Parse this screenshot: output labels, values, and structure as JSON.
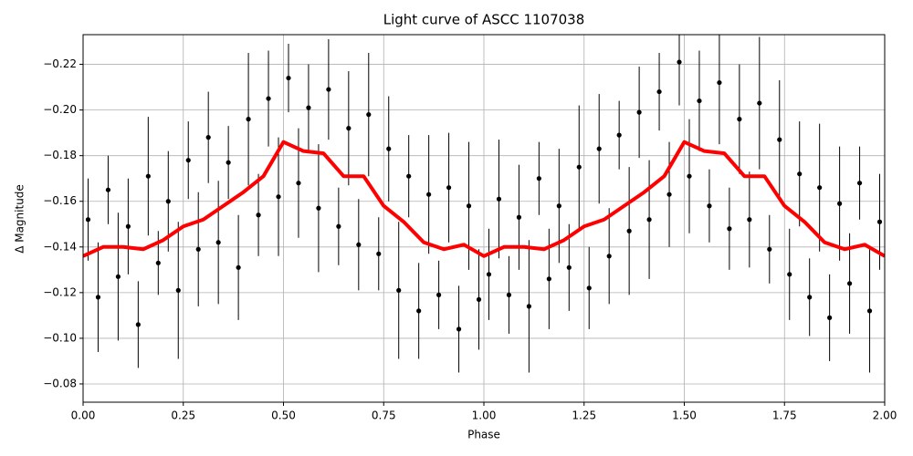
{
  "chart_data": {
    "type": "scatter",
    "title": "Light curve of ASCC 1107038",
    "xlabel": "Phase",
    "ylabel": "Δ Magnitude",
    "xlim": [
      0,
      2
    ],
    "ylim": [
      -0.072,
      -0.233
    ],
    "xticks": [
      {
        "value": 0,
        "label": "0.00"
      },
      {
        "value": 0.25,
        "label": "0.25"
      },
      {
        "value": 0.5,
        "label": "0.50"
      },
      {
        "value": 0.75,
        "label": "0.75"
      },
      {
        "value": 1,
        "label": "1.00"
      },
      {
        "value": 1.25,
        "label": "1.25"
      },
      {
        "value": 1.5,
        "label": "1.50"
      },
      {
        "value": 1.75,
        "label": "1.75"
      },
      {
        "value": 2,
        "label": "2.00"
      }
    ],
    "yticks": [
      {
        "value": -0.22,
        "label": "−0.22"
      },
      {
        "value": -0.2,
        "label": "−0.20"
      },
      {
        "value": -0.18,
        "label": "−0.18"
      },
      {
        "value": -0.16,
        "label": "−0.16"
      },
      {
        "value": -0.14,
        "label": "−0.14"
      },
      {
        "value": -0.12,
        "label": "−0.12"
      },
      {
        "value": -0.1,
        "label": "−0.10"
      },
      {
        "value": -0.08,
        "label": "−0.08"
      }
    ],
    "grid": true,
    "points": {
      "color": "#000000",
      "x": [
        0.0125,
        0.0375,
        0.0625,
        0.0875,
        0.1125,
        0.1375,
        0.1625,
        0.1875,
        0.2125,
        0.2375,
        0.2625,
        0.2875,
        0.3125,
        0.3375,
        0.3625,
        0.3875,
        0.4125,
        0.4375,
        0.4625,
        0.4875,
        0.5125,
        0.5375,
        0.5625,
        0.5875,
        0.6125,
        0.6375,
        0.6625,
        0.6875,
        0.7125,
        0.7375,
        0.7625,
        0.7875,
        0.8125,
        0.8375,
        0.8625,
        0.8875,
        0.9125,
        0.9375,
        0.9625,
        0.9875,
        1.0125,
        1.0375,
        1.0625,
        1.0875,
        1.1125,
        1.1375,
        1.1625,
        1.1875,
        1.2125,
        1.2375,
        1.2625,
        1.2875,
        1.3125,
        1.3375,
        1.3625,
        1.3875,
        1.4125,
        1.4375,
        1.4625,
        1.4875,
        1.5125,
        1.5375,
        1.5625,
        1.5875,
        1.6125,
        1.6375,
        1.6625,
        1.6875,
        1.7125,
        1.7375,
        1.7625,
        1.7875,
        1.8125,
        1.8375,
        1.8625,
        1.8875,
        1.9125,
        1.9375,
        1.9625,
        1.9875
      ],
      "y": [
        -0.152,
        -0.118,
        -0.165,
        -0.127,
        -0.149,
        -0.106,
        -0.171,
        -0.133,
        -0.16,
        -0.121,
        -0.178,
        -0.139,
        -0.188,
        -0.142,
        -0.177,
        -0.131,
        -0.196,
        -0.154,
        -0.205,
        -0.162,
        -0.214,
        -0.168,
        -0.201,
        -0.157,
        -0.209,
        -0.149,
        -0.192,
        -0.141,
        -0.198,
        -0.137,
        -0.183,
        -0.121,
        -0.171,
        -0.112,
        -0.163,
        -0.119,
        -0.166,
        -0.104,
        -0.158,
        -0.117,
        -0.128,
        -0.161,
        -0.119,
        -0.153,
        -0.114,
        -0.17,
        -0.126,
        -0.158,
        -0.131,
        -0.175,
        -0.122,
        -0.183,
        -0.136,
        -0.189,
        -0.147,
        -0.199,
        -0.152,
        -0.208,
        -0.163,
        -0.221,
        -0.171,
        -0.204,
        -0.158,
        -0.212,
        -0.148,
        -0.196,
        -0.152,
        -0.203,
        -0.139,
        -0.187,
        -0.128,
        -0.172,
        -0.118,
        -0.166,
        -0.109,
        -0.159,
        -0.124,
        -0.168,
        -0.112,
        -0.151
      ],
      "errors": [
        0.018,
        0.024,
        0.015,
        0.028,
        0.021,
        0.019,
        0.026,
        0.014,
        0.022,
        0.03,
        0.017,
        0.025,
        0.02,
        0.027,
        0.016,
        0.023,
        0.029,
        0.018,
        0.021,
        0.026,
        0.015,
        0.024,
        0.019,
        0.028,
        0.022,
        0.017,
        0.025,
        0.02,
        0.027,
        0.016,
        0.023,
        0.03,
        0.018,
        0.021,
        0.026,
        0.015,
        0.024,
        0.019,
        0.028,
        0.022,
        0.02,
        0.026,
        0.017,
        0.023,
        0.029,
        0.016,
        0.022,
        0.025,
        0.019,
        0.027,
        0.018,
        0.024,
        0.021,
        0.015,
        0.028,
        0.02,
        0.026,
        0.017,
        0.023,
        0.019,
        0.025,
        0.022,
        0.016,
        0.027,
        0.018,
        0.024,
        0.021,
        0.029,
        0.015,
        0.026,
        0.02,
        0.023,
        0.017,
        0.028,
        0.019,
        0.025,
        0.022,
        0.016,
        0.027,
        0.021
      ]
    },
    "curve": {
      "color": "#ff0000",
      "x": [
        0,
        0.05,
        0.1,
        0.15,
        0.2,
        0.25,
        0.3,
        0.35,
        0.4,
        0.45,
        0.5,
        0.55,
        0.6,
        0.65,
        0.7,
        0.75,
        0.8,
        0.85,
        0.9,
        0.95,
        1,
        1.05,
        1.1,
        1.15,
        1.2,
        1.25,
        1.3,
        1.35,
        1.4,
        1.45,
        1.5,
        1.55,
        1.6,
        1.65,
        1.7,
        1.75,
        1.8,
        1.85,
        1.9,
        1.95,
        2
      ],
      "y": [
        -0.136,
        -0.14,
        -0.14,
        -0.139,
        -0.143,
        -0.149,
        -0.152,
        -0.158,
        -0.164,
        -0.171,
        -0.186,
        -0.182,
        -0.181,
        -0.171,
        -0.171,
        -0.158,
        -0.151,
        -0.142,
        -0.139,
        -0.141,
        -0.136,
        -0.14,
        -0.14,
        -0.139,
        -0.143,
        -0.149,
        -0.152,
        -0.158,
        -0.164,
        -0.171,
        -0.186,
        -0.182,
        -0.181,
        -0.171,
        -0.171,
        -0.158,
        -0.151,
        -0.142,
        -0.139,
        -0.141,
        -0.136
      ]
    }
  }
}
